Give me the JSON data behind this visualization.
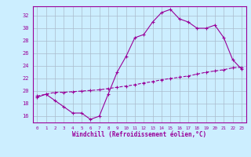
{
  "xlabel": "Windchill (Refroidissement éolien,°C)",
  "xlim": [
    -0.5,
    23.5
  ],
  "ylim": [
    15.0,
    33.5
  ],
  "yticks": [
    16,
    18,
    20,
    22,
    24,
    26,
    28,
    30,
    32
  ],
  "xticks": [
    0,
    1,
    2,
    3,
    4,
    5,
    6,
    7,
    8,
    9,
    10,
    11,
    12,
    13,
    14,
    15,
    16,
    17,
    18,
    19,
    20,
    21,
    22,
    23
  ],
  "bg_color": "#cceeff",
  "line_color": "#990099",
  "grid_color": "#aabbcc",
  "line1_x": [
    0,
    1,
    2,
    3,
    4,
    5,
    6,
    7,
    8,
    9,
    10,
    11,
    12,
    13,
    14,
    15,
    16,
    17,
    18,
    19,
    20,
    21,
    22,
    23
  ],
  "line1_y": [
    19.0,
    19.5,
    18.5,
    17.5,
    16.5,
    16.5,
    15.5,
    16.0,
    19.5,
    23.0,
    25.5,
    28.5,
    29.0,
    31.0,
    32.5,
    33.0,
    31.5,
    31.0,
    30.0,
    30.0,
    30.5,
    28.5,
    25.0,
    23.5
  ],
  "line2_x": [
    0,
    1,
    2,
    3,
    4,
    5,
    6,
    7,
    8,
    9,
    10,
    11,
    12,
    13,
    14,
    15,
    16,
    17,
    18,
    19,
    20,
    21,
    22,
    23
  ],
  "line2_y": [
    19.2,
    19.5,
    19.8,
    19.8,
    19.9,
    20.0,
    20.1,
    20.2,
    20.4,
    20.6,
    20.8,
    21.0,
    21.3,
    21.5,
    21.8,
    22.0,
    22.2,
    22.4,
    22.7,
    23.0,
    23.2,
    23.4,
    23.7,
    23.8
  ]
}
